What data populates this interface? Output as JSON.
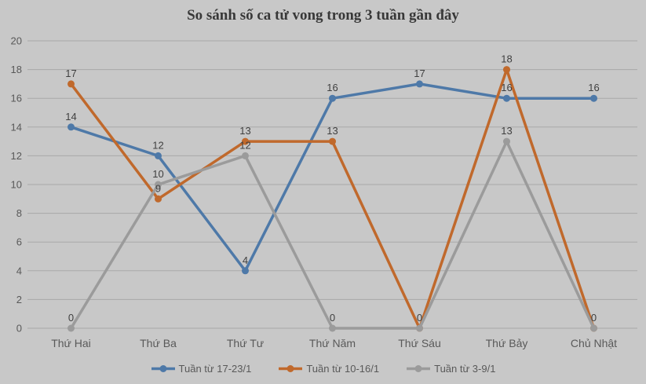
{
  "title": "So sánh số ca tử vong trong 3 tuần gần đây",
  "colors": {
    "background": "#c8c8c8",
    "gridline": "#a9a9a9",
    "axis_text": "#595959",
    "data_label_text": "#404040",
    "title_text": "#383838"
  },
  "chart_data": {
    "type": "line",
    "title": "So sánh số ca tử vong trong 3 tuần gần đây",
    "categories": [
      "Thứ Hai",
      "Thứ Ba",
      "Thứ Tư",
      "Thứ Năm",
      "Thứ Sáu",
      "Thứ Bảy",
      "Chủ Nhật"
    ],
    "series": [
      {
        "name": "Tuần từ 17-23/1",
        "color": "#4e79a8",
        "values": [
          14,
          12,
          4,
          16,
          17,
          16,
          16
        ]
      },
      {
        "name": "Tuần từ 10-16/1",
        "color": "#c0692c",
        "values": [
          17,
          9,
          13,
          13,
          0,
          18,
          0
        ]
      },
      {
        "name": "Tuần từ 3-9/1",
        "color": "#9b9b9b",
        "values": [
          0,
          10,
          12,
          0,
          0,
          13,
          0
        ]
      }
    ],
    "xlabel": "",
    "ylabel": "",
    "ylim": [
      0,
      20
    ],
    "yticks": [
      0,
      2,
      4,
      6,
      8,
      10,
      12,
      14,
      16,
      18,
      20
    ],
    "grid": true,
    "data_labels": true,
    "markers": true,
    "legend_position": "bottom"
  }
}
